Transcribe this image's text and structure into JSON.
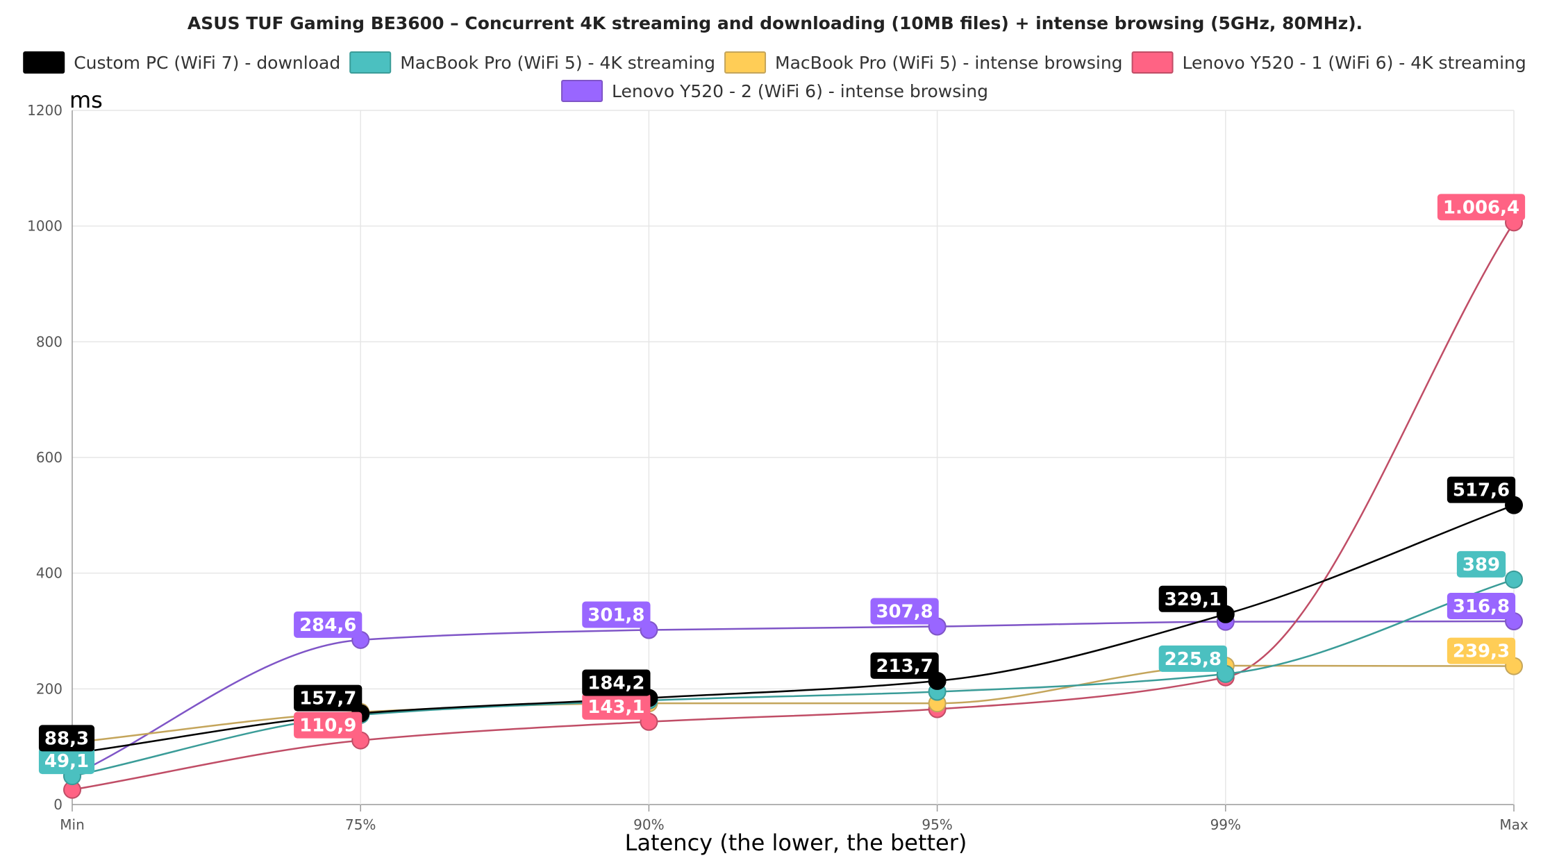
{
  "chart_data": {
    "type": "line",
    "title": "ASUS TUF Gaming BE3600 – Concurrent 4K streaming and downloading (10MB files) + intense browsing (5GHz, 80MHz).",
    "ylabel": "ms",
    "xlabel": "Latency (the lower, the better)",
    "categories": [
      "Min",
      "75%",
      "90%",
      "95%",
      "99%",
      "Max"
    ],
    "ylim": [
      0,
      1200
    ],
    "yticks": [
      "0",
      "200",
      "400",
      "600",
      "800",
      "1000",
      "1200"
    ],
    "grid": true,
    "legend_position": "top",
    "series": [
      {
        "name": "Custom PC (WiFi 7) - download",
        "color": "#000000",
        "line_color": "#000000",
        "values": [
          88.3,
          157.7,
          184.2,
          213.7,
          329.1,
          517.6
        ],
        "labels": [
          "88,3",
          "157,7",
          "184,2",
          "213,7",
          "329,1",
          "517,6"
        ]
      },
      {
        "name": "MacBook Pro (WiFi 5) - 4K streaming",
        "color": "#4bc0c0",
        "line_color": "#3a9c98",
        "values": [
          49.1,
          155,
          180,
          195,
          225.8,
          389
        ],
        "labels": [
          "49,1",
          "",
          "",
          "",
          "225,8",
          "389"
        ]
      },
      {
        "name": "MacBook Pro (WiFi 5) - intense browsing",
        "color": "#ffcd56",
        "line_color": "#c4a55b",
        "values": [
          107,
          160,
          175,
          175,
          240,
          239.3
        ],
        "labels": [
          "",
          "",
          "",
          "",
          "",
          "239,3"
        ]
      },
      {
        "name": "Lenovo Y520 - 1 (WiFi 6) - 4K streaming",
        "color": "#ff6384",
        "line_color": "#c04d66",
        "values": [
          25.6,
          110.9,
          143.1,
          165,
          220,
          1006.4
        ],
        "labels": [
          "",
          "110,9",
          "143,1",
          "",
          "",
          "1.006,4"
        ]
      },
      {
        "name": "Lenovo Y520 - 2 (WiFi 6) - intense browsing",
        "color": "#9966ff",
        "line_color": "#7f55c7",
        "values": [
          50,
          284.6,
          301.8,
          307.8,
          316,
          316.8
        ],
        "labels": [
          "",
          "284,6",
          "301,8",
          "307,8",
          "",
          "316,8"
        ]
      }
    ]
  }
}
